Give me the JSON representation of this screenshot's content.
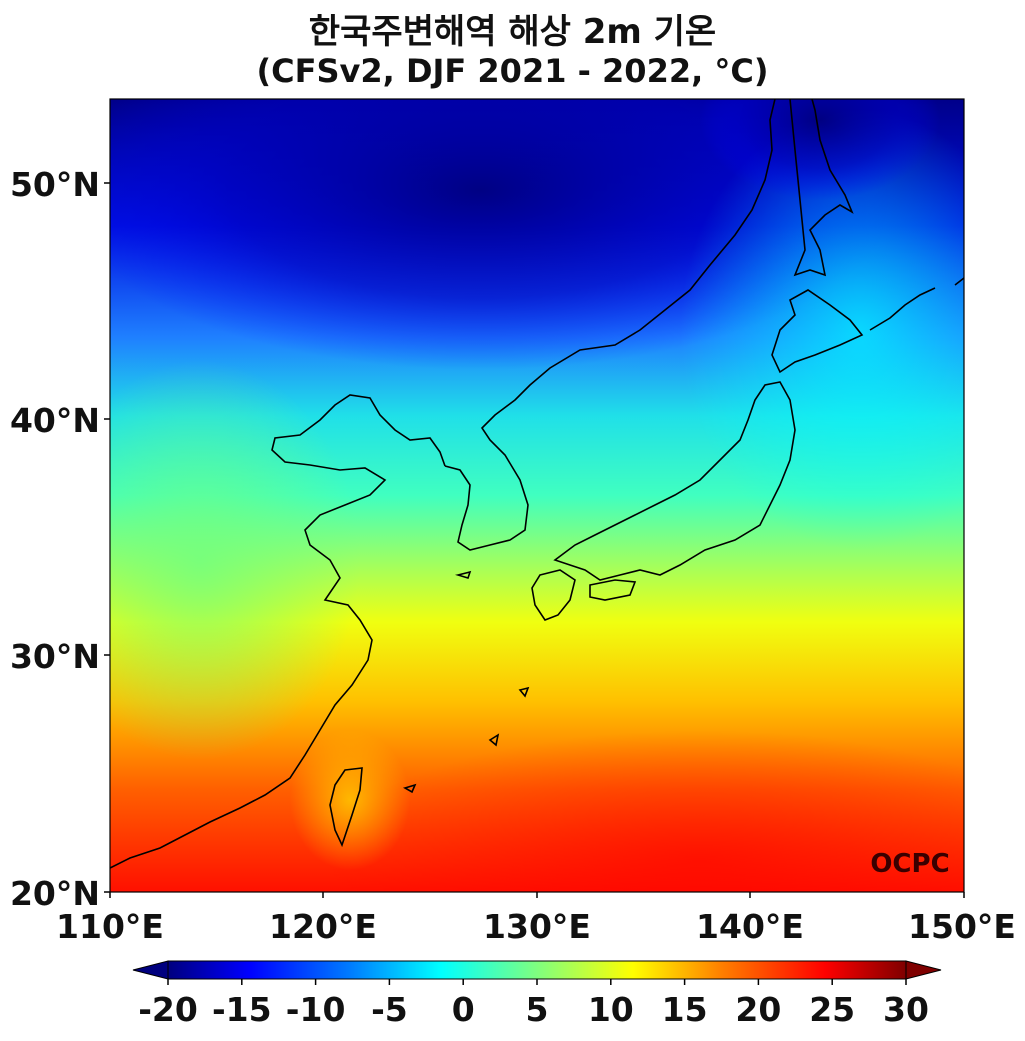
{
  "title": {
    "line1": "한국주변해역 해상 2m 기온",
    "line2": "(CFSv2, DJF 2021 - 2022, °C)"
  },
  "map": {
    "lon_range": [
      110,
      150
    ],
    "lat_range": [
      20,
      53.5
    ],
    "lon_ticks": [
      "110°E",
      "120°E",
      "130°E",
      "140°E",
      "150°E"
    ],
    "lat_ticks": [
      "50°N",
      "40°N",
      "30°N",
      "20°N"
    ],
    "colormap": "jet",
    "logo": "OCPC"
  },
  "colorbar": {
    "min": -20,
    "max": 30,
    "extend": "both",
    "ticks": [
      "-20",
      "-15",
      "-10",
      "-5",
      "0",
      "5",
      "10",
      "15",
      "20",
      "25",
      "30"
    ],
    "colors": [
      "#00007f",
      "#0000ff",
      "#007fff",
      "#00ffff",
      "#7fff7f",
      "#ffff00",
      "#ff7f00",
      "#ff0000",
      "#7f0000"
    ]
  }
}
